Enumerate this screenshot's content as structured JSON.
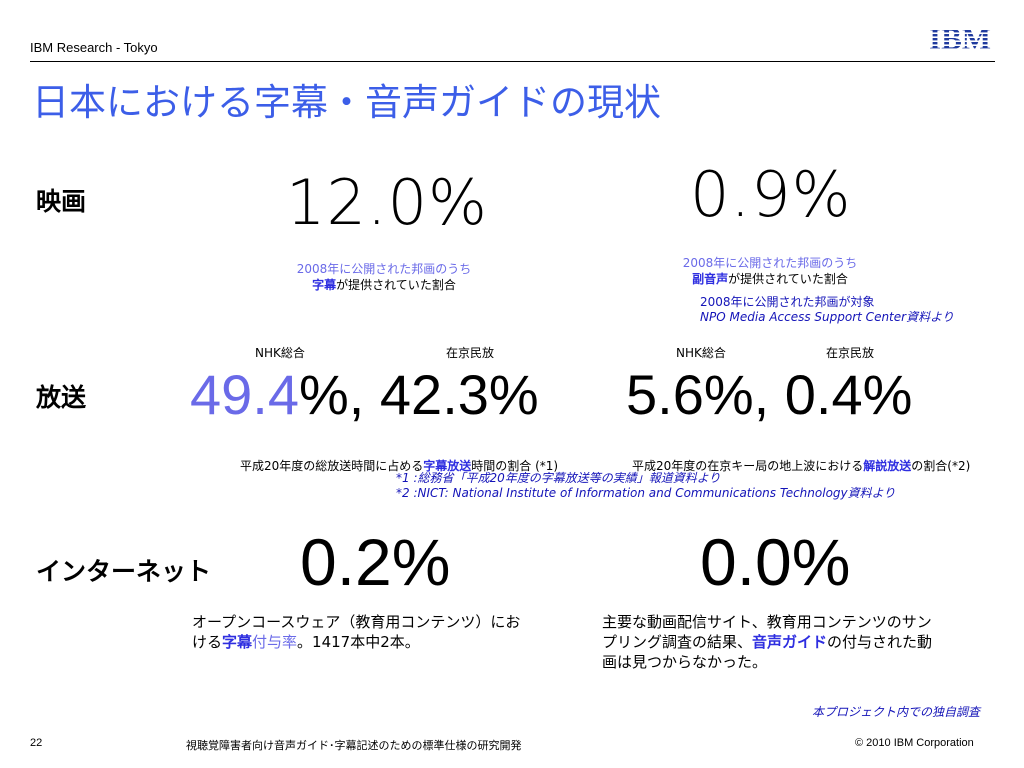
{
  "header": {
    "org": "IBM Research - Tokyo",
    "logo": "IBM",
    "title": "日本における字幕・音声ガイドの現状"
  },
  "movie": {
    "label": "映画",
    "subtitle_pct": "12.0%",
    "audio_pct": "0.9%",
    "subtitle_note": {
      "line1": "2008年に公開された邦画のうち",
      "line2_em": "字幕",
      "line2_rest": "が提供されていた割合"
    },
    "audio_note": {
      "line1": "2008年に公開された邦画のうち",
      "line2_em": "副音声",
      "line2_rest": "が提供されていた割合"
    },
    "source_line1": "2008年に公開された邦画が対象",
    "source_line2": "NPO Media Access Support Center資料より"
  },
  "broadcast": {
    "label": "放送",
    "col_nhk_1": "NHK総合",
    "col_private_1": "在京民放",
    "col_nhk_2": "NHK総合",
    "col_private_2": "在京民放",
    "value_nhk_sub": "49.4",
    "value_rest_sub": "%, 42.3%",
    "value_audio": "5.6%, 0.4%",
    "note_sub_pre": "平成20年度の総放送時間に占める",
    "note_sub_em": "字幕放送",
    "note_sub_post": "時間の割合 (*1)",
    "note_audio_pre": "平成20年度の在京キー局の地上波における",
    "note_audio_em": "解説放送",
    "note_audio_post": "の割合(*2)",
    "source1": "*1 :総務省「平成20年度の字幕放送等の実績」報道資料より",
    "source2": "*2 :NICT: National Institute of Information and Communications Technology資料より"
  },
  "internet": {
    "label": "インターネット",
    "subtitle_pct": "0.2%",
    "audio_pct": "0.0%",
    "left_text": {
      "line1": "オープンコースウェア（教育用コンテンツ）にお",
      "line2_pre": "ける",
      "line2_em": "字幕",
      "line2_em2": "付与率",
      "line2_post": "。1417本中2本。"
    },
    "right_text": {
      "line1": "主要な動画配信サイト、教育用コンテンツのサン",
      "line2_pre": "プリング調査の結果、",
      "line2_em": "音声ガイド",
      "line2_post": "の付与された動",
      "line3": "画は見つからなかった。"
    },
    "source": "本プロジェクト内での独自調査"
  },
  "footer": {
    "page": "22",
    "title": "視聴覚障害者向け音声ガイド･字幕記述のための標準仕様の研究開発",
    "copyright": "© 2010 IBM Corporation"
  },
  "colors": {
    "title": "#3c5ee8",
    "accent": "#6a6ae8",
    "emphasis": "#2e2ee0",
    "source": "#1414b8"
  }
}
